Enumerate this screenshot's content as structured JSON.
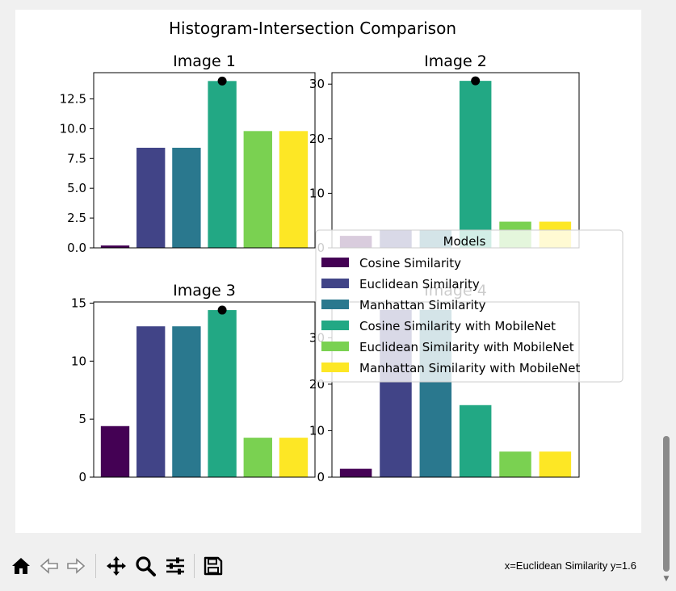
{
  "chart_data": {
    "type": "bar",
    "suptitle": "Histogram-Intersection Comparison",
    "categories": [
      "Cosine Similarity",
      "Euclidean Similarity",
      "Manhattan Similarity",
      "Cosine Similarity with MobileNet",
      "Euclidean Similarity with MobileNet",
      "Manhattan Similarity with MobileNet"
    ],
    "colors": [
      "#440154",
      "#414487",
      "#2a788e",
      "#22a884",
      "#7ad151",
      "#fde725"
    ],
    "subplots": [
      {
        "title": "Image 1",
        "values": [
          0.2,
          8.4,
          8.4,
          14.0,
          9.8,
          9.8
        ],
        "ylim": [
          0,
          14.7
        ],
        "yticks": [
          0,
          2.5,
          5,
          7.5,
          10,
          12.5
        ],
        "ytick_labels": [
          "0.0",
          "2.5",
          "5.0",
          "7.5",
          "10.0",
          "12.5"
        ],
        "highlight_index": 3
      },
      {
        "title": "Image 2",
        "values": [
          2.2,
          3.2,
          3.2,
          30.6,
          4.8,
          4.8
        ],
        "ylim": [
          0,
          32.1
        ],
        "yticks": [
          0,
          10,
          20,
          30
        ],
        "ytick_labels": [
          "0",
          "10",
          "20",
          "30"
        ],
        "highlight_index": 3
      },
      {
        "title": "Image 3",
        "values": [
          4.4,
          13.0,
          13.0,
          14.4,
          3.4,
          3.4
        ],
        "ylim": [
          0,
          15.1
        ],
        "yticks": [
          0,
          5,
          10,
          15
        ],
        "ytick_labels": [
          "0",
          "5",
          "10",
          "15"
        ],
        "highlight_index": 3
      },
      {
        "title": "Image 4",
        "values": [
          1.8,
          36.0,
          36.0,
          15.5,
          5.5,
          5.5
        ],
        "ylim": [
          0,
          37.7
        ],
        "yticks": [
          0,
          10,
          20,
          30
        ],
        "ytick_labels": [
          "0",
          "10",
          "20",
          "30"
        ],
        "highlight_index": -1
      }
    ],
    "legend": {
      "title": "Models",
      "entries": [
        "Cosine Similarity",
        "Euclidean Similarity",
        "Manhattan Similarity",
        "Cosine Similarity with MobileNet",
        "Euclidean Similarity with MobileNet",
        "Manhattan Similarity with MobileNet"
      ],
      "placement": "center-right"
    }
  },
  "toolbar": {
    "buttons": [
      {
        "name": "home-icon",
        "label": "Home"
      },
      {
        "name": "back-arrow-icon",
        "label": "Back"
      },
      {
        "name": "forward-arrow-icon",
        "label": "Forward"
      },
      {
        "name": "pan-icon",
        "label": "Pan"
      },
      {
        "name": "zoom-icon",
        "label": "Zoom"
      },
      {
        "name": "configure-subplots-icon",
        "label": "Configure subplots"
      },
      {
        "name": "save-icon",
        "label": "Save"
      }
    ],
    "status": "x=Euclidean Similarity y=1.6"
  }
}
